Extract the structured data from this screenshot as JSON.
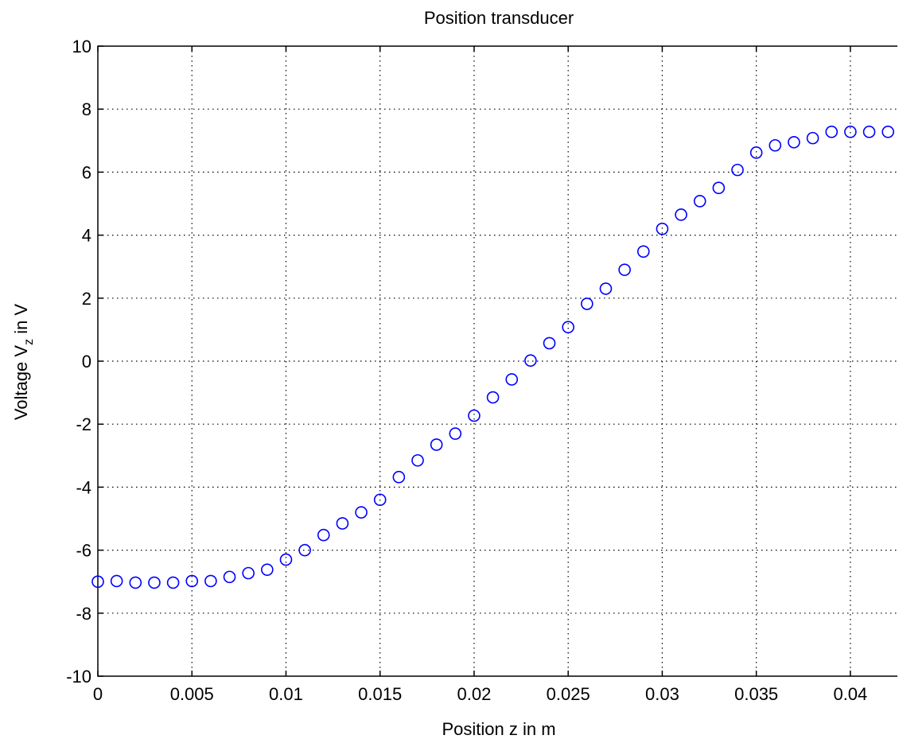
{
  "chart_data": {
    "type": "scatter",
    "title": "Position transducer",
    "xlabel": "Position z in m",
    "ylabel": {
      "main": "Voltage V",
      "subscript": "z",
      "suffix": " in V"
    },
    "xlim": [
      0,
      0.0425
    ],
    "ylim": [
      -10,
      10
    ],
    "xticks": [
      0,
      0.005,
      0.01,
      0.015,
      0.02,
      0.025,
      0.03,
      0.035,
      0.04
    ],
    "xtick_labels": [
      "0",
      "0.005",
      "0.01",
      "0.015",
      "0.02",
      "0.025",
      "0.03",
      "0.035",
      "0.04"
    ],
    "yticks": [
      -10,
      -8,
      -6,
      -4,
      -2,
      0,
      2,
      4,
      6,
      8,
      10
    ],
    "ytick_labels": [
      "-10",
      "-8",
      "-6",
      "-4",
      "-2",
      "0",
      "2",
      "4",
      "6",
      "8",
      "10"
    ],
    "grid": true,
    "marker": "circle-open",
    "color": "#0000ff",
    "series": [
      {
        "x": [
          0,
          0.001,
          0.002,
          0.003,
          0.004,
          0.005,
          0.006,
          0.007,
          0.008,
          0.009,
          0.01,
          0.011,
          0.012,
          0.013,
          0.014,
          0.015,
          0.016,
          0.017,
          0.018,
          0.019,
          0.02,
          0.021,
          0.022,
          0.023,
          0.024,
          0.025,
          0.026,
          0.027,
          0.028,
          0.029,
          0.03,
          0.031,
          0.032,
          0.033,
          0.034,
          0.035,
          0.036,
          0.037,
          0.038,
          0.039,
          0.04,
          0.041,
          0.042
        ],
        "y": [
          -7.0,
          -6.98,
          -7.03,
          -7.03,
          -7.03,
          -6.98,
          -6.98,
          -6.85,
          -6.73,
          -6.62,
          -6.3,
          -6.0,
          -5.52,
          -5.15,
          -4.8,
          -4.4,
          -3.68,
          -3.15,
          -2.65,
          -2.3,
          -1.73,
          -1.15,
          -0.58,
          0.02,
          0.57,
          1.08,
          1.82,
          2.3,
          2.9,
          3.48,
          4.2,
          4.65,
          5.08,
          5.5,
          6.07,
          6.62,
          6.85,
          6.95,
          7.08,
          7.28,
          7.28,
          7.28,
          7.28
        ]
      }
    ]
  }
}
